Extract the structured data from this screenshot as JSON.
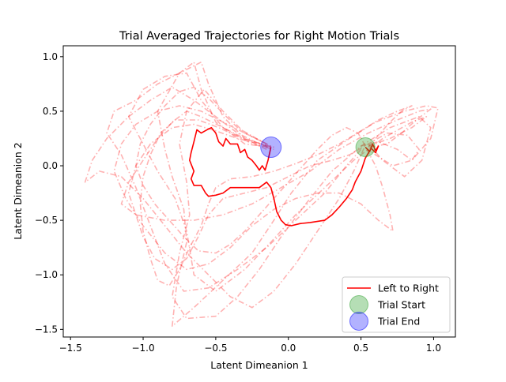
{
  "chart_data": {
    "type": "line",
    "title": "Trial Averaged Trajectories for Right Motion Trials",
    "xlabel": "Latent Dimeanion 1",
    "ylabel": "Latent Dimeanion 2",
    "xlim": [
      -1.55,
      1.15
    ],
    "ylim": [
      -1.57,
      1.1
    ],
    "x_ticks": [
      -1.5,
      -1.0,
      -0.5,
      0.0,
      0.5,
      1.0
    ],
    "x_tick_labels": [
      "−1.5",
      "−1.0",
      "−0.5",
      "0.0",
      "0.5",
      "1.0"
    ],
    "y_ticks": [
      -1.5,
      -1.0,
      -0.5,
      0.0,
      0.5,
      1.0
    ],
    "y_tick_labels": [
      "−1.5",
      "−1.0",
      "−0.5",
      "0.0",
      "0.5",
      "1.0"
    ],
    "grid": false,
    "legend_position": "lower right",
    "legend": [
      "Left to Right",
      "Trial Start",
      "Trial End"
    ],
    "colors": {
      "average": "#ff0000",
      "trials": "#ff0000",
      "start": "#2ca02c",
      "end": "#0000ff"
    },
    "trial_start": [
      0.53,
      0.17
    ],
    "trial_end": [
      -0.12,
      0.17
    ],
    "average_trajectory": [
      [
        0.53,
        0.17
      ],
      [
        0.56,
        0.13
      ],
      [
        0.58,
        0.2
      ],
      [
        0.6,
        0.14
      ],
      [
        0.62,
        0.18
      ],
      [
        0.6,
        0.12
      ],
      [
        0.57,
        0.16
      ],
      [
        0.53,
        0.07
      ],
      [
        0.5,
        -0.05
      ],
      [
        0.48,
        -0.1
      ],
      [
        0.46,
        -0.15
      ],
      [
        0.44,
        -0.22
      ],
      [
        0.4,
        -0.3
      ],
      [
        0.35,
        -0.38
      ],
      [
        0.3,
        -0.45
      ],
      [
        0.25,
        -0.5
      ],
      [
        0.15,
        -0.52
      ],
      [
        0.08,
        -0.53
      ],
      [
        0.02,
        -0.55
      ],
      [
        -0.02,
        -0.54
      ],
      [
        -0.05,
        -0.5
      ],
      [
        -0.08,
        -0.42
      ],
      [
        -0.1,
        -0.3
      ],
      [
        -0.12,
        -0.2
      ],
      [
        -0.15,
        -0.15
      ],
      [
        -0.2,
        -0.2
      ],
      [
        -0.3,
        -0.2
      ],
      [
        -0.4,
        -0.2
      ],
      [
        -0.45,
        -0.25
      ],
      [
        -0.5,
        -0.27
      ],
      [
        -0.55,
        -0.28
      ],
      [
        -0.57,
        -0.25
      ],
      [
        -0.6,
        -0.18
      ],
      [
        -0.65,
        -0.18
      ],
      [
        -0.67,
        -0.12
      ],
      [
        -0.65,
        -0.05
      ],
      [
        -0.68,
        0.05
      ],
      [
        -0.67,
        0.12
      ],
      [
        -0.65,
        0.22
      ],
      [
        -0.63,
        0.33
      ],
      [
        -0.6,
        0.3
      ],
      [
        -0.56,
        0.33
      ],
      [
        -0.53,
        0.35
      ],
      [
        -0.5,
        0.3
      ],
      [
        -0.48,
        0.22
      ],
      [
        -0.45,
        0.18
      ],
      [
        -0.43,
        0.25
      ],
      [
        -0.4,
        0.2
      ],
      [
        -0.35,
        0.2
      ],
      [
        -0.33,
        0.12
      ],
      [
        -0.3,
        0.15
      ],
      [
        -0.28,
        0.08
      ],
      [
        -0.25,
        0.05
      ],
      [
        -0.22,
        0.0
      ],
      [
        -0.2,
        -0.04
      ],
      [
        -0.18,
        0.0
      ],
      [
        -0.16,
        -0.04
      ],
      [
        -0.14,
        0.05
      ],
      [
        -0.12,
        0.17
      ]
    ],
    "trials": [
      [
        [
          0.53,
          0.17
        ],
        [
          0.6,
          0.1
        ],
        [
          0.72,
          0.0
        ],
        [
          0.85,
          0.05
        ],
        [
          0.98,
          0.25
        ],
        [
          1.03,
          0.53
        ],
        [
          0.95,
          0.55
        ],
        [
          0.8,
          0.5
        ],
        [
          0.6,
          0.4
        ],
        [
          0.42,
          0.25
        ],
        [
          0.2,
          0.05
        ],
        [
          0.02,
          -0.25
        ],
        [
          -0.1,
          -0.5
        ],
        [
          -0.25,
          -0.8
        ],
        [
          -0.45,
          -1.05
        ],
        [
          -0.65,
          -1.3
        ],
        [
          -0.8,
          -1.47
        ],
        [
          -0.77,
          -1.1
        ],
        [
          -0.7,
          -0.7
        ],
        [
          -0.72,
          -0.4
        ],
        [
          -0.8,
          -0.1
        ],
        [
          -0.85,
          0.15
        ],
        [
          -0.9,
          0.5
        ],
        [
          -0.75,
          0.85
        ],
        [
          -0.65,
          0.95
        ],
        [
          -0.6,
          0.7
        ],
        [
          -0.5,
          0.4
        ],
        [
          -0.3,
          0.2
        ],
        [
          -0.12,
          0.17
        ]
      ],
      [
        [
          0.55,
          0.2
        ],
        [
          0.65,
          0.05
        ],
        [
          0.8,
          -0.1
        ],
        [
          0.92,
          0.05
        ],
        [
          0.98,
          0.35
        ],
        [
          0.9,
          0.45
        ],
        [
          0.7,
          0.35
        ],
        [
          0.5,
          0.18
        ],
        [
          0.3,
          -0.05
        ],
        [
          0.12,
          -0.35
        ],
        [
          -0.05,
          -0.65
        ],
        [
          -0.2,
          -0.95
        ],
        [
          -0.35,
          -1.2
        ],
        [
          -0.5,
          -1.38
        ],
        [
          -0.7,
          -1.4
        ],
        [
          -0.8,
          -1.2
        ],
        [
          -0.75,
          -0.8
        ],
        [
          -0.68,
          -0.45
        ],
        [
          -0.7,
          -0.15
        ],
        [
          -0.75,
          0.2
        ],
        [
          -0.7,
          0.5
        ],
        [
          -0.58,
          0.7
        ],
        [
          -0.45,
          0.5
        ],
        [
          -0.3,
          0.3
        ],
        [
          -0.15,
          0.2
        ]
      ],
      [
        [
          0.5,
          0.15
        ],
        [
          0.4,
          0.0
        ],
        [
          0.25,
          -0.25
        ],
        [
          0.05,
          -0.5
        ],
        [
          -0.15,
          -0.75
        ],
        [
          -0.35,
          -0.95
        ],
        [
          -0.55,
          -1.12
        ],
        [
          -0.72,
          -1.15
        ],
        [
          -0.85,
          -0.9
        ],
        [
          -0.95,
          -0.55
        ],
        [
          -1.05,
          -0.2
        ],
        [
          -1.15,
          0.1
        ],
        [
          -1.25,
          0.3
        ],
        [
          -1.2,
          0.5
        ],
        [
          -1.05,
          0.6
        ],
        [
          -0.9,
          0.75
        ],
        [
          -0.75,
          0.85
        ],
        [
          -0.6,
          0.95
        ],
        [
          -0.55,
          0.75
        ],
        [
          -0.45,
          0.45
        ],
        [
          -0.3,
          0.25
        ],
        [
          -0.15,
          0.15
        ]
      ],
      [
        [
          0.55,
          0.18
        ],
        [
          0.7,
          0.25
        ],
        [
          0.85,
          0.35
        ],
        [
          0.95,
          0.45
        ],
        [
          0.85,
          0.4
        ],
        [
          0.65,
          0.25
        ],
        [
          0.45,
          0.05
        ],
        [
          0.25,
          -0.2
        ],
        [
          0.05,
          -0.45
        ],
        [
          -0.12,
          -0.7
        ],
        [
          -0.3,
          -0.95
        ],
        [
          -0.5,
          -1.15
        ],
        [
          -0.65,
          -1.0
        ],
        [
          -0.7,
          -0.6
        ],
        [
          -0.78,
          -0.3
        ],
        [
          -0.9,
          -0.05
        ],
        [
          -1.0,
          0.2
        ],
        [
          -1.1,
          0.45
        ],
        [
          -1.0,
          0.7
        ],
        [
          -0.85,
          0.82
        ],
        [
          -0.7,
          0.85
        ],
        [
          -0.6,
          0.6
        ],
        [
          -0.45,
          0.35
        ],
        [
          -0.25,
          0.2
        ],
        [
          -0.1,
          0.15
        ]
      ],
      [
        [
          0.52,
          0.16
        ],
        [
          0.45,
          -0.05
        ],
        [
          0.35,
          -0.3
        ],
        [
          0.2,
          -0.6
        ],
        [
          0.05,
          -0.9
        ],
        [
          -0.1,
          -1.15
        ],
        [
          -0.25,
          -1.3
        ],
        [
          -0.4,
          -1.2
        ],
        [
          -0.55,
          -1.0
        ],
        [
          -0.7,
          -0.8
        ],
        [
          -0.85,
          -0.55
        ],
        [
          -1.0,
          -0.3
        ],
        [
          -1.15,
          -0.1
        ],
        [
          -1.3,
          -0.05
        ],
        [
          -1.4,
          -0.15
        ],
        [
          -1.35,
          0.05
        ],
        [
          -1.25,
          0.25
        ],
        [
          -1.1,
          0.45
        ],
        [
          -0.95,
          0.6
        ],
        [
          -0.8,
          0.72
        ],
        [
          -0.65,
          0.6
        ],
        [
          -0.5,
          0.45
        ],
        [
          -0.35,
          0.3
        ],
        [
          -0.2,
          0.2
        ],
        [
          -0.12,
          0.16
        ]
      ],
      [
        [
          0.56,
          0.17
        ],
        [
          0.68,
          0.2
        ],
        [
          0.78,
          0.3
        ],
        [
          0.88,
          0.42
        ],
        [
          0.98,
          0.52
        ],
        [
          0.9,
          0.5
        ],
        [
          0.75,
          0.42
        ],
        [
          0.55,
          0.3
        ],
        [
          0.35,
          0.15
        ],
        [
          0.15,
          -0.05
        ],
        [
          -0.05,
          -0.2
        ],
        [
          -0.25,
          -0.35
        ],
        [
          -0.45,
          -0.45
        ],
        [
          -0.65,
          -0.5
        ],
        [
          -0.85,
          -0.5
        ],
        [
          -1.05,
          -0.45
        ],
        [
          -1.15,
          -0.35
        ],
        [
          -1.1,
          -0.15
        ],
        [
          -1.0,
          0.05
        ],
        [
          -0.9,
          0.25
        ],
        [
          -0.8,
          0.4
        ],
        [
          -0.7,
          0.5
        ],
        [
          -0.6,
          0.45
        ],
        [
          -0.45,
          0.35
        ],
        [
          -0.3,
          0.25
        ],
        [
          -0.12,
          0.17
        ]
      ],
      [
        [
          0.54,
          0.15
        ],
        [
          0.6,
          0.0
        ],
        [
          0.65,
          -0.2
        ],
        [
          0.7,
          -0.45
        ],
        [
          0.72,
          -0.6
        ],
        [
          0.62,
          -0.5
        ],
        [
          0.5,
          -0.35
        ],
        [
          0.35,
          -0.25
        ],
        [
          0.2,
          -0.25
        ],
        [
          0.05,
          -0.3
        ],
        [
          -0.1,
          -0.4
        ],
        [
          -0.25,
          -0.55
        ],
        [
          -0.4,
          -0.75
        ],
        [
          -0.55,
          -0.9
        ],
        [
          -0.7,
          -0.95
        ],
        [
          -0.85,
          -0.8
        ],
        [
          -1.0,
          -0.55
        ],
        [
          -1.12,
          -0.3
        ],
        [
          -1.2,
          -0.05
        ],
        [
          -1.15,
          0.2
        ],
        [
          -1.05,
          0.38
        ],
        [
          -0.9,
          0.5
        ],
        [
          -0.75,
          0.55
        ],
        [
          -0.6,
          0.5
        ],
        [
          -0.45,
          0.4
        ],
        [
          -0.3,
          0.3
        ],
        [
          -0.15,
          0.2
        ]
      ],
      [
        [
          0.5,
          0.18
        ],
        [
          0.62,
          0.22
        ],
        [
          0.75,
          0.15
        ],
        [
          0.85,
          0.05
        ],
        [
          0.9,
          0.15
        ],
        [
          0.82,
          0.28
        ],
        [
          0.68,
          0.3
        ],
        [
          0.55,
          0.2
        ],
        [
          0.42,
          0.1
        ],
        [
          0.3,
          0.05
        ],
        [
          0.15,
          0.0
        ],
        [
          0.0,
          -0.1
        ],
        [
          -0.15,
          -0.2
        ],
        [
          -0.3,
          -0.25
        ],
        [
          -0.45,
          -0.3
        ],
        [
          -0.55,
          -0.45
        ],
        [
          -0.62,
          -0.65
        ],
        [
          -0.7,
          -0.85
        ],
        [
          -0.8,
          -0.95
        ],
        [
          -0.92,
          -0.85
        ],
        [
          -1.0,
          -0.65
        ],
        [
          -1.05,
          -0.45
        ],
        [
          -1.1,
          -0.25
        ],
        [
          -1.05,
          0.0
        ],
        [
          -0.95,
          0.2
        ],
        [
          -0.8,
          0.35
        ],
        [
          -0.65,
          0.38
        ],
        [
          -0.5,
          0.32
        ],
        [
          -0.35,
          0.25
        ],
        [
          -0.2,
          0.2
        ],
        [
          -0.1,
          0.17
        ]
      ],
      [
        [
          0.55,
          0.17
        ],
        [
          0.62,
          0.28
        ],
        [
          0.7,
          0.4
        ],
        [
          0.78,
          0.5
        ],
        [
          0.85,
          0.55
        ],
        [
          0.75,
          0.5
        ],
        [
          0.62,
          0.42
        ],
        [
          0.5,
          0.32
        ],
        [
          0.35,
          0.2
        ],
        [
          0.2,
          0.1
        ],
        [
          0.05,
          0.02
        ],
        [
          -0.1,
          -0.05
        ],
        [
          -0.25,
          -0.1
        ],
        [
          -0.4,
          -0.12
        ],
        [
          -0.5,
          -0.2
        ],
        [
          -0.55,
          -0.35
        ],
        [
          -0.6,
          -0.55
        ],
        [
          -0.68,
          -0.75
        ],
        [
          -0.75,
          -0.95
        ],
        [
          -0.82,
          -1.1
        ],
        [
          -0.9,
          -1.05
        ],
        [
          -0.95,
          -0.85
        ],
        [
          -1.0,
          -0.6
        ],
        [
          -1.02,
          -0.35
        ],
        [
          -1.0,
          -0.1
        ],
        [
          -0.95,
          0.1
        ],
        [
          -0.88,
          0.3
        ],
        [
          -0.78,
          0.42
        ],
        [
          -0.62,
          0.42
        ],
        [
          -0.48,
          0.35
        ],
        [
          -0.32,
          0.25
        ],
        [
          -0.18,
          0.2
        ],
        [
          -0.1,
          0.17
        ]
      ],
      [
        [
          0.53,
          0.18
        ],
        [
          0.48,
          0.3
        ],
        [
          0.4,
          0.35
        ],
        [
          0.3,
          0.28
        ],
        [
          0.2,
          0.15
        ],
        [
          0.1,
          0.0
        ],
        [
          0.0,
          -0.15
        ],
        [
          -0.1,
          -0.3
        ],
        [
          -0.2,
          -0.45
        ],
        [
          -0.3,
          -0.6
        ],
        [
          -0.4,
          -0.72
        ],
        [
          -0.5,
          -0.8
        ],
        [
          -0.62,
          -0.78
        ],
        [
          -0.72,
          -0.65
        ],
        [
          -0.82,
          -0.5
        ],
        [
          -0.92,
          -0.35
        ],
        [
          -1.0,
          -0.18
        ],
        [
          -1.05,
          0.0
        ],
        [
          -1.02,
          0.2
        ],
        [
          -0.95,
          0.38
        ],
        [
          -0.85,
          0.55
        ],
        [
          -0.75,
          0.68
        ],
        [
          -0.65,
          0.72
        ],
        [
          -0.55,
          0.62
        ],
        [
          -0.45,
          0.48
        ],
        [
          -0.35,
          0.35
        ],
        [
          -0.22,
          0.25
        ],
        [
          -0.12,
          0.18
        ]
      ]
    ]
  }
}
